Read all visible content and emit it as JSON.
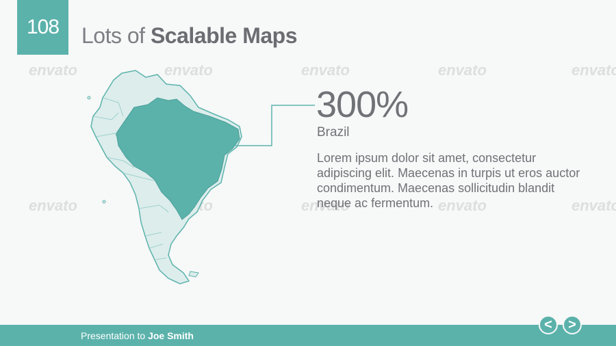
{
  "slide": {
    "number": "108",
    "title_light": "Lots of",
    "title_bold": "Scalable Maps"
  },
  "watermark_text": "envato",
  "stat": {
    "value": "300%",
    "label": "Brazil",
    "body": "Lorem ipsum dolor sit amet, consectetur adipiscing elit. Maecenas in turpis ut eros auctor condimentum. Maecenas sollicitudin blandit neque ac fermentum."
  },
  "footer": {
    "presenter_prefix": "Presentation to",
    "presenter_name": "Joe Smith"
  },
  "nav": {
    "prev_label": "<",
    "next_label": ">"
  },
  "colors": {
    "accent": "#5bb2ab",
    "map_fill": "#dcedec",
    "highlight": "#5bb2ab",
    "text": "#6f7276"
  }
}
